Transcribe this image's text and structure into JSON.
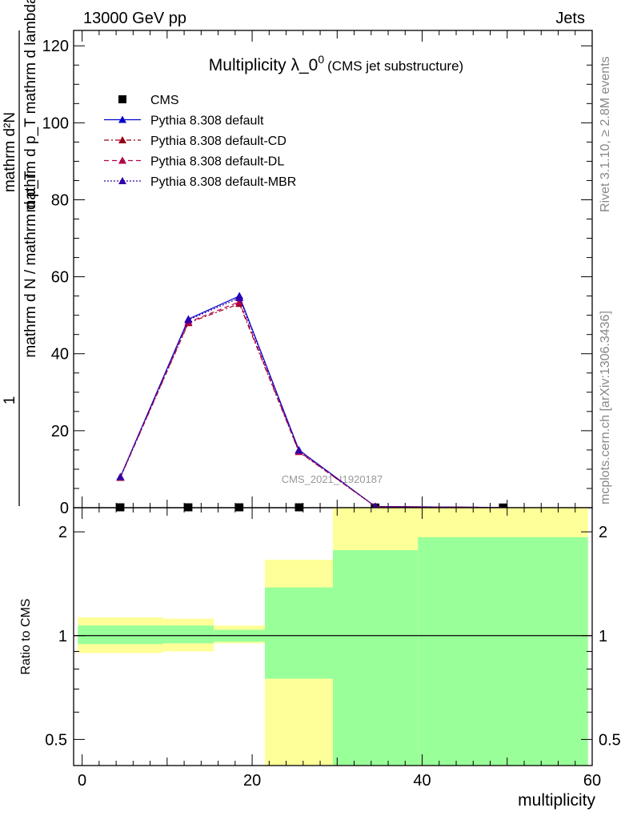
{
  "header": {
    "energy": "13000 GeV pp",
    "category": "Jets"
  },
  "side_labels": {
    "rivet": "Rivet 3.1.10, ≥ 2.8M events",
    "mcplots": "mcplots.cern.ch [arXiv:1306.3436]"
  },
  "chart_data": [
    {
      "type": "line",
      "title_main": "Multiplicity λ_0",
      "title_sup": "0",
      "title_sub": "(CMS jet substructure)",
      "ylabel_numer_outer": "1",
      "ylabel_numer_inner": "mathrm d²N",
      "ylabel_denom_inner": "mathrm d p_T mathrm d lambda",
      "ylabel_denom_outer": "mathrm d N / mathrm d p_T",
      "xlim": [
        -1,
        60
      ],
      "ylim": [
        0,
        124
      ],
      "yticks": [
        0,
        20,
        40,
        60,
        80,
        100,
        120
      ],
      "watermark": "CMS_2021_I1920187",
      "legend_position": "top-left",
      "colors": {
        "CMS": "#000000",
        "default": "#0000cc",
        "CD": "#99001a",
        "DL": "#b3004d",
        "MBR": "#3300aa"
      },
      "series": [
        {
          "name": "CMS",
          "style": "markers",
          "x": [
            4.5,
            12.5,
            18.5,
            25.5,
            34.5,
            49.5
          ],
          "y": [
            0.1,
            0.1,
            0.1,
            0.1,
            0.05,
            0.05
          ]
        },
        {
          "name": "Pythia 8.308 default",
          "style": "solid",
          "x": [
            4.5,
            12.5,
            18.5,
            25.5,
            34.5,
            49.5
          ],
          "y": [
            8.0,
            49.0,
            55.0,
            15.0,
            0.3,
            0.05
          ]
        },
        {
          "name": "Pythia 8.308 default-CD",
          "style": "dashdot",
          "x": [
            4.5,
            12.5,
            18.5,
            25.5,
            34.5,
            49.5
          ],
          "y": [
            7.8,
            48.0,
            53.0,
            14.5,
            0.3,
            0.05
          ]
        },
        {
          "name": "Pythia 8.308 default-DL",
          "style": "dashed",
          "x": [
            4.5,
            12.5,
            18.5,
            25.5,
            34.5,
            49.5
          ],
          "y": [
            7.9,
            48.2,
            53.5,
            14.6,
            0.3,
            0.05
          ]
        },
        {
          "name": "Pythia 8.308 default-MBR",
          "style": "dotted",
          "x": [
            4.5,
            12.5,
            18.5,
            25.5,
            34.5,
            49.5
          ],
          "y": [
            8.0,
            48.8,
            54.5,
            14.9,
            0.3,
            0.05
          ]
        }
      ]
    },
    {
      "type": "area",
      "ylabel": "Ratio to CMS",
      "xlabel": "multiplicity",
      "xlim": [
        -1,
        60
      ],
      "ylim": [
        0.42,
        2.35
      ],
      "log_y": true,
      "yticks": [
        0.5,
        1,
        2
      ],
      "xticks": [
        0,
        20,
        40,
        60
      ],
      "bins": [
        {
          "lo": -0.5,
          "hi": 9.5,
          "stat_lo": 0.945,
          "stat_hi": 1.07,
          "total_lo": 0.89,
          "total_hi": 1.13
        },
        {
          "lo": 9.5,
          "hi": 15.5,
          "stat_lo": 0.95,
          "stat_hi": 1.07,
          "total_lo": 0.9,
          "total_hi": 1.12
        },
        {
          "lo": 15.5,
          "hi": 21.5,
          "stat_lo": 0.96,
          "stat_hi": 1.04,
          "total_lo": 0.95,
          "total_hi": 1.07
        },
        {
          "lo": 21.5,
          "hi": 29.5,
          "stat_lo": 0.75,
          "stat_hi": 1.38,
          "total_lo": 0.42,
          "total_hi": 1.66
        },
        {
          "lo": 29.5,
          "hi": 39.5,
          "stat_lo": 0.42,
          "stat_hi": 1.77,
          "total_lo": 0.42,
          "total_hi": 2.35
        },
        {
          "lo": 39.5,
          "hi": 59.5,
          "stat_lo": 0.42,
          "stat_hi": 1.93,
          "total_lo": 0.42,
          "total_hi": 2.35
        }
      ]
    }
  ]
}
